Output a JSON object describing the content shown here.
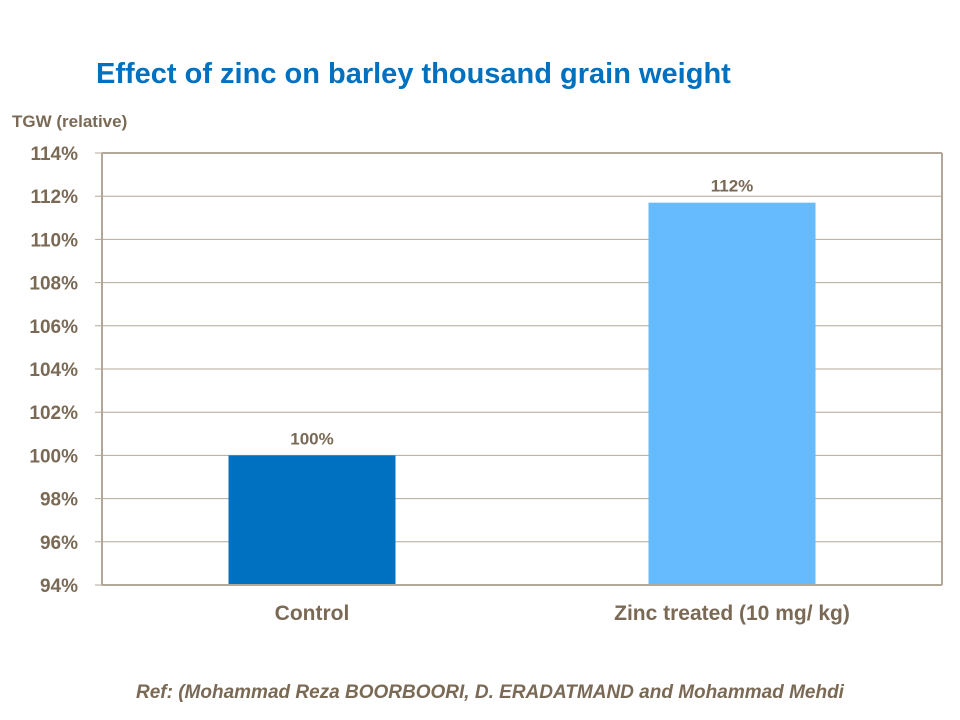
{
  "title": "Effect of zinc on barley thousand grain weight",
  "reference": "Ref: (Mohammad Reza BOORBOORI,  D. ERADATMAND and Mohammad Mehdi",
  "chart_data": {
    "type": "bar",
    "title": "Effect of zinc on barley thousand grain weight",
    "ylabel": "TGW (relative)",
    "xlabel": "",
    "categories": [
      "Control",
      "Zinc treated (10 mg/ kg)"
    ],
    "values": [
      100,
      111.7
    ],
    "data_labels": [
      "100%",
      "112%"
    ],
    "colors": [
      "#0070c0",
      "#66bbff"
    ],
    "ylim": [
      94,
      114
    ],
    "yticks": [
      "94%",
      "96%",
      "98%",
      "100%",
      "102%",
      "104%",
      "106%",
      "108%",
      "110%",
      "112%",
      "114%"
    ],
    "grid": true
  }
}
